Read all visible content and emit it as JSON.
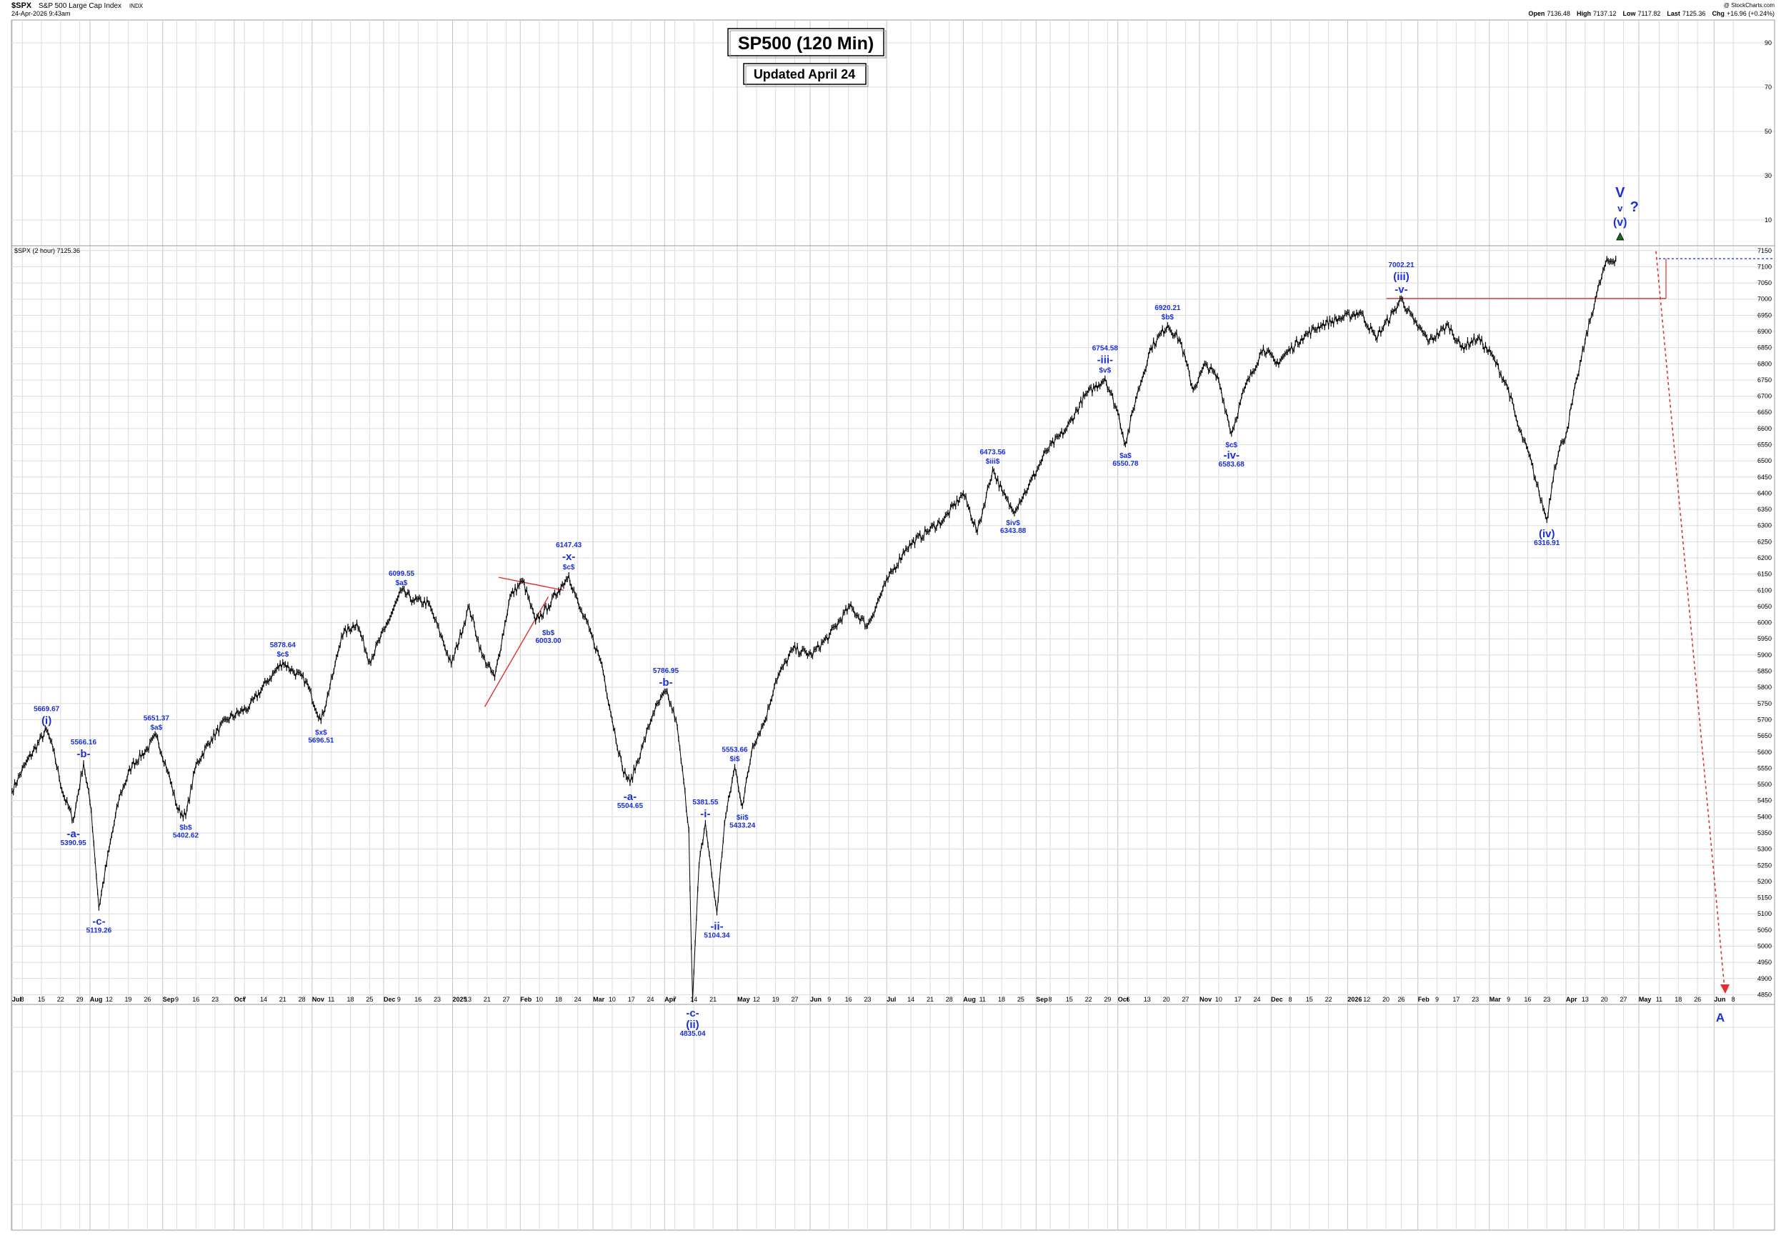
{
  "header": {
    "symbol": "$SPX",
    "name": "S&P 500 Large Cap Index",
    "exchange": "INDX",
    "datetime": "24-Apr-2026 9:43am",
    "copyright": "@ StockCharts.com",
    "ohlc": [
      {
        "label": "Open",
        "value": "7136.48"
      },
      {
        "label": "High",
        "value": "7137.12"
      },
      {
        "label": "Low",
        "value": "7117.82"
      },
      {
        "label": "Last",
        "value": "7125.36"
      },
      {
        "label": "Chg",
        "value": "+16.96 (+0.24%)"
      }
    ]
  },
  "chart_data": {
    "type": "line",
    "title": "SP500 (120 Min)",
    "subtitle": "Updated April 24",
    "legend": "$SPX (2 hour) 7125.36",
    "ylim": [
      4820,
      7165
    ],
    "yticks": [
      4850,
      4900,
      4950,
      5000,
      5050,
      5100,
      5150,
      5200,
      5250,
      5300,
      5350,
      5400,
      5450,
      5500,
      5550,
      5600,
      5650,
      5700,
      5750,
      5800,
      5850,
      5900,
      5950,
      6000,
      6050,
      6100,
      6150,
      6200,
      6250,
      6300,
      6350,
      6400,
      6450,
      6500,
      6550,
      6600,
      6650,
      6700,
      6750,
      6800,
      6850,
      6900,
      6950,
      7000,
      7050,
      7100,
      7150
    ],
    "upper_ticks": [
      "90",
      "70",
      "50",
      "30",
      "10"
    ],
    "xticks": [
      {
        "i": 0,
        "label": "Jul",
        "m": true
      },
      {
        "i": 8,
        "label": "8"
      },
      {
        "i": 23,
        "label": "15"
      },
      {
        "i": 38,
        "label": "22"
      },
      {
        "i": 53,
        "label": "29"
      },
      {
        "i": 61,
        "label": "Aug",
        "m": true
      },
      {
        "i": 76,
        "label": "12"
      },
      {
        "i": 91,
        "label": "19"
      },
      {
        "i": 106,
        "label": "26"
      },
      {
        "i": 118,
        "label": "Sep",
        "m": true
      },
      {
        "i": 129,
        "label": "9"
      },
      {
        "i": 144,
        "label": "16"
      },
      {
        "i": 159,
        "label": "23"
      },
      {
        "i": 174,
        "label": "Oct",
        "m": true
      },
      {
        "i": 182,
        "label": "7"
      },
      {
        "i": 197,
        "label": "14"
      },
      {
        "i": 212,
        "label": "21"
      },
      {
        "i": 227,
        "label": "28"
      },
      {
        "i": 235,
        "label": "Nov",
        "m": true
      },
      {
        "i": 250,
        "label": "11"
      },
      {
        "i": 265,
        "label": "18"
      },
      {
        "i": 280,
        "label": "25"
      },
      {
        "i": 291,
        "label": "Dec",
        "m": true
      },
      {
        "i": 303,
        "label": "9"
      },
      {
        "i": 318,
        "label": "16"
      },
      {
        "i": 333,
        "label": "23"
      },
      {
        "i": 345,
        "label": "2025",
        "m": true
      },
      {
        "i": 357,
        "label": "13"
      },
      {
        "i": 372,
        "label": "21"
      },
      {
        "i": 387,
        "label": "27"
      },
      {
        "i": 398,
        "label": "Feb",
        "m": true
      },
      {
        "i": 413,
        "label": "10"
      },
      {
        "i": 428,
        "label": "18"
      },
      {
        "i": 443,
        "label": "24"
      },
      {
        "i": 455,
        "label": "Mar",
        "m": true
      },
      {
        "i": 470,
        "label": "10"
      },
      {
        "i": 485,
        "label": "17"
      },
      {
        "i": 500,
        "label": "24"
      },
      {
        "i": 511,
        "label": "Apr",
        "m": true
      },
      {
        "i": 519,
        "label": "7"
      },
      {
        "i": 534,
        "label": "14"
      },
      {
        "i": 549,
        "label": "21"
      },
      {
        "i": 568,
        "label": "May",
        "m": true
      },
      {
        "i": 583,
        "label": "12"
      },
      {
        "i": 598,
        "label": "19"
      },
      {
        "i": 613,
        "label": "27"
      },
      {
        "i": 625,
        "label": "Jun",
        "m": true
      },
      {
        "i": 640,
        "label": "9"
      },
      {
        "i": 655,
        "label": "16"
      },
      {
        "i": 670,
        "label": "23"
      },
      {
        "i": 685,
        "label": "Jul",
        "m": true
      },
      {
        "i": 704,
        "label": "14"
      },
      {
        "i": 719,
        "label": "21"
      },
      {
        "i": 734,
        "label": "28"
      },
      {
        "i": 745,
        "label": "Aug",
        "m": true
      },
      {
        "i": 760,
        "label": "11"
      },
      {
        "i": 775,
        "label": "18"
      },
      {
        "i": 790,
        "label": "25"
      },
      {
        "i": 802,
        "label": "Sep",
        "m": true
      },
      {
        "i": 813,
        "label": "8"
      },
      {
        "i": 828,
        "label": "15"
      },
      {
        "i": 843,
        "label": "22"
      },
      {
        "i": 858,
        "label": "29"
      },
      {
        "i": 866,
        "label": "Oct",
        "m": true
      },
      {
        "i": 874,
        "label": "6"
      },
      {
        "i": 889,
        "label": "13"
      },
      {
        "i": 904,
        "label": "20"
      },
      {
        "i": 919,
        "label": "27"
      },
      {
        "i": 930,
        "label": "Nov",
        "m": true
      },
      {
        "i": 945,
        "label": "10"
      },
      {
        "i": 960,
        "label": "17"
      },
      {
        "i": 975,
        "label": "24"
      },
      {
        "i": 986,
        "label": "Dec",
        "m": true
      },
      {
        "i": 1001,
        "label": "8"
      },
      {
        "i": 1016,
        "label": "15"
      },
      {
        "i": 1031,
        "label": "22"
      },
      {
        "i": 1046,
        "label": "2026",
        "m": true
      },
      {
        "i": 1061,
        "label": "12"
      },
      {
        "i": 1076,
        "label": "20"
      },
      {
        "i": 1088,
        "label": "26"
      },
      {
        "i": 1101,
        "label": "Feb",
        "m": true
      },
      {
        "i": 1116,
        "label": "9"
      },
      {
        "i": 1131,
        "label": "17"
      },
      {
        "i": 1146,
        "label": "23"
      },
      {
        "i": 1157,
        "label": "Mar",
        "m": true
      },
      {
        "i": 1172,
        "label": "9"
      },
      {
        "i": 1187,
        "label": "16"
      },
      {
        "i": 1202,
        "label": "23"
      },
      {
        "i": 1217,
        "label": "Apr",
        "m": true
      },
      {
        "i": 1232,
        "label": "13"
      },
      {
        "i": 1247,
        "label": "20"
      },
      {
        "i": 1262,
        "label": "27"
      },
      {
        "i": 1274,
        "label": "May",
        "m": true
      },
      {
        "i": 1290,
        "label": "11"
      },
      {
        "i": 1305,
        "label": "18"
      },
      {
        "i": 1320,
        "label": "26"
      },
      {
        "i": 1333,
        "label": "Jun",
        "m": true
      },
      {
        "i": 1348,
        "label": "8"
      }
    ],
    "anchors": [
      [
        0,
        5480
      ],
      [
        10,
        5560
      ],
      [
        27,
        5669
      ],
      [
        32,
        5610
      ],
      [
        40,
        5470
      ],
      [
        48,
        5390
      ],
      [
        56,
        5566
      ],
      [
        62,
        5420
      ],
      [
        68,
        5119
      ],
      [
        76,
        5300
      ],
      [
        84,
        5460
      ],
      [
        94,
        5560
      ],
      [
        106,
        5610
      ],
      [
        113,
        5651
      ],
      [
        122,
        5540
      ],
      [
        130,
        5420
      ],
      [
        136,
        5402
      ],
      [
        144,
        5560
      ],
      [
        156,
        5640
      ],
      [
        168,
        5700
      ],
      [
        186,
        5740
      ],
      [
        200,
        5820
      ],
      [
        212,
        5878
      ],
      [
        220,
        5850
      ],
      [
        230,
        5820
      ],
      [
        242,
        5696
      ],
      [
        252,
        5850
      ],
      [
        258,
        5960
      ],
      [
        270,
        6000
      ],
      [
        280,
        5880
      ],
      [
        292,
        5980
      ],
      [
        305,
        6099
      ],
      [
        314,
        6070
      ],
      [
        326,
        6060
      ],
      [
        336,
        5960
      ],
      [
        344,
        5870
      ],
      [
        358,
        6050
      ],
      [
        368,
        5900
      ],
      [
        378,
        5830
      ],
      [
        390,
        6080
      ],
      [
        400,
        6130
      ],
      [
        410,
        6003
      ],
      [
        420,
        6050
      ],
      [
        428,
        6100
      ],
      [
        436,
        6147
      ],
      [
        444,
        6050
      ],
      [
        452,
        5980
      ],
      [
        462,
        5870
      ],
      [
        470,
        5700
      ],
      [
        478,
        5550
      ],
      [
        484,
        5504
      ],
      [
        494,
        5620
      ],
      [
        502,
        5720
      ],
      [
        512,
        5787
      ],
      [
        520,
        5700
      ],
      [
        526,
        5510
      ],
      [
        530,
        5360
      ],
      [
        533,
        4835
      ],
      [
        538,
        5250
      ],
      [
        543,
        5381
      ],
      [
        548,
        5220
      ],
      [
        552,
        5104
      ],
      [
        558,
        5380
      ],
      [
        566,
        5554
      ],
      [
        572,
        5433
      ],
      [
        580,
        5620
      ],
      [
        590,
        5700
      ],
      [
        598,
        5820
      ],
      [
        612,
        5920
      ],
      [
        626,
        5900
      ],
      [
        640,
        5960
      ],
      [
        656,
        6050
      ],
      [
        670,
        5990
      ],
      [
        684,
        6120
      ],
      [
        700,
        6230
      ],
      [
        716,
        6280
      ],
      [
        730,
        6320
      ],
      [
        745,
        6400
      ],
      [
        756,
        6280
      ],
      [
        768,
        6474
      ],
      [
        776,
        6400
      ],
      [
        784,
        6344
      ],
      [
        796,
        6420
      ],
      [
        810,
        6530
      ],
      [
        826,
        6600
      ],
      [
        840,
        6700
      ],
      [
        856,
        6755
      ],
      [
        866,
        6650
      ],
      [
        872,
        6551
      ],
      [
        880,
        6690
      ],
      [
        892,
        6850
      ],
      [
        905,
        6920
      ],
      [
        915,
        6870
      ],
      [
        925,
        6720
      ],
      [
        935,
        6800
      ],
      [
        945,
        6750
      ],
      [
        955,
        6584
      ],
      [
        965,
        6720
      ],
      [
        980,
        6850
      ],
      [
        990,
        6800
      ],
      [
        1010,
        6880
      ],
      [
        1025,
        6920
      ],
      [
        1040,
        6940
      ],
      [
        1056,
        6960
      ],
      [
        1068,
        6880
      ],
      [
        1082,
        6960
      ],
      [
        1088,
        7002
      ],
      [
        1098,
        6930
      ],
      [
        1110,
        6870
      ],
      [
        1125,
        6920
      ],
      [
        1135,
        6850
      ],
      [
        1148,
        6880
      ],
      [
        1160,
        6820
      ],
      [
        1172,
        6720
      ],
      [
        1180,
        6600
      ],
      [
        1188,
        6520
      ],
      [
        1196,
        6400
      ],
      [
        1202,
        6317
      ],
      [
        1208,
        6480
      ],
      [
        1214,
        6560
      ],
      [
        1217,
        6580
      ],
      [
        1226,
        6760
      ],
      [
        1232,
        6870
      ],
      [
        1240,
        7000
      ],
      [
        1248,
        7110
      ],
      [
        1256,
        7125
      ]
    ],
    "annotations": [
      {
        "i": 27,
        "p": 5669,
        "lines": [
          "5669.67",
          "(i)"
        ],
        "pos": "above"
      },
      {
        "i": 56,
        "p": 5566,
        "lines": [
          "5566.16",
          "-b-"
        ],
        "pos": "above"
      },
      {
        "i": 48,
        "p": 5390,
        "lines": [
          "-a-",
          "5390.95"
        ],
        "pos": "below"
      },
      {
        "i": 68,
        "p": 5119,
        "lines": [
          "-c-",
          "5119.26"
        ],
        "pos": "below"
      },
      {
        "i": 113,
        "p": 5651,
        "lines": [
          "5651.37",
          "$a$"
        ],
        "pos": "above"
      },
      {
        "i": 136,
        "p": 5402,
        "lines": [
          "$b$",
          "5402.62"
        ],
        "pos": "below"
      },
      {
        "i": 212,
        "p": 5878,
        "lines": [
          "5878.64",
          "$c$"
        ],
        "pos": "above"
      },
      {
        "i": 242,
        "p": 5696,
        "lines": [
          "$x$",
          "5696.51"
        ],
        "pos": "below"
      },
      {
        "i": 305,
        "p": 6099,
        "lines": [
          "6099.55",
          "$a$"
        ],
        "pos": "above"
      },
      {
        "i": 436,
        "p": 6147,
        "lines": [
          "6147.43",
          "-x-",
          "$c$"
        ],
        "pos": "above"
      },
      {
        "i": 420,
        "p": 6003,
        "lines": [
          "$b$",
          "6003.00"
        ],
        "pos": "below"
      },
      {
        "i": 512,
        "p": 5787,
        "lines": [
          "5786.95",
          "-b-"
        ],
        "pos": "above"
      },
      {
        "i": 484,
        "p": 5504,
        "lines": [
          "-a-",
          "5504.65"
        ],
        "pos": "below"
      },
      {
        "i": 533,
        "p": 4835,
        "lines": [
          "-c-",
          "(ii)",
          "4835.04"
        ],
        "pos": "below"
      },
      {
        "i": 543,
        "p": 5381,
        "lines": [
          "5381.55",
          "-i-"
        ],
        "pos": "above"
      },
      {
        "i": 552,
        "p": 5104,
        "lines": [
          "-ii-",
          "5104.34"
        ],
        "pos": "below"
      },
      {
        "i": 566,
        "p": 5554,
        "lines": [
          "5553.66",
          "$i$"
        ],
        "pos": "above"
      },
      {
        "i": 572,
        "p": 5433,
        "lines": [
          "$ii$",
          "5433.24"
        ],
        "pos": "below"
      },
      {
        "i": 768,
        "p": 6474,
        "lines": [
          "6473.56",
          "$iii$"
        ],
        "pos": "above"
      },
      {
        "i": 784,
        "p": 6344,
        "lines": [
          "$iv$",
          "6343.88"
        ],
        "pos": "below"
      },
      {
        "i": 856,
        "p": 6755,
        "lines": [
          "6754.58",
          "-iii-",
          "$v$"
        ],
        "pos": "above"
      },
      {
        "i": 872,
        "p": 6551,
        "lines": [
          "$a$",
          "6550.78"
        ],
        "pos": "below"
      },
      {
        "i": 905,
        "p": 6920,
        "lines": [
          "6920.21",
          "$b$"
        ],
        "pos": "above"
      },
      {
        "i": 955,
        "p": 6584,
        "lines": [
          "$c$",
          "-iv-",
          "6583.68"
        ],
        "pos": "below"
      },
      {
        "i": 1088,
        "p": 7002,
        "lines": [
          "7002.21",
          "(iii)",
          "-v-"
        ],
        "pos": "above"
      },
      {
        "i": 1202,
        "p": 6317,
        "lines": [
          "(iv)",
          "6316.91"
        ],
        "pos": "below"
      }
    ],
    "wave_v_labels": [
      "V",
      "v",
      "(v)"
    ],
    "question_mark": "?",
    "target_label": "A",
    "support_level": 7002,
    "current_level": 7125,
    "colors": {
      "price": "#000000",
      "annotation": "#1a2fd6",
      "line": "#e03030",
      "dotted": "#1a2fd6",
      "grid": "#dcdcdc"
    }
  }
}
